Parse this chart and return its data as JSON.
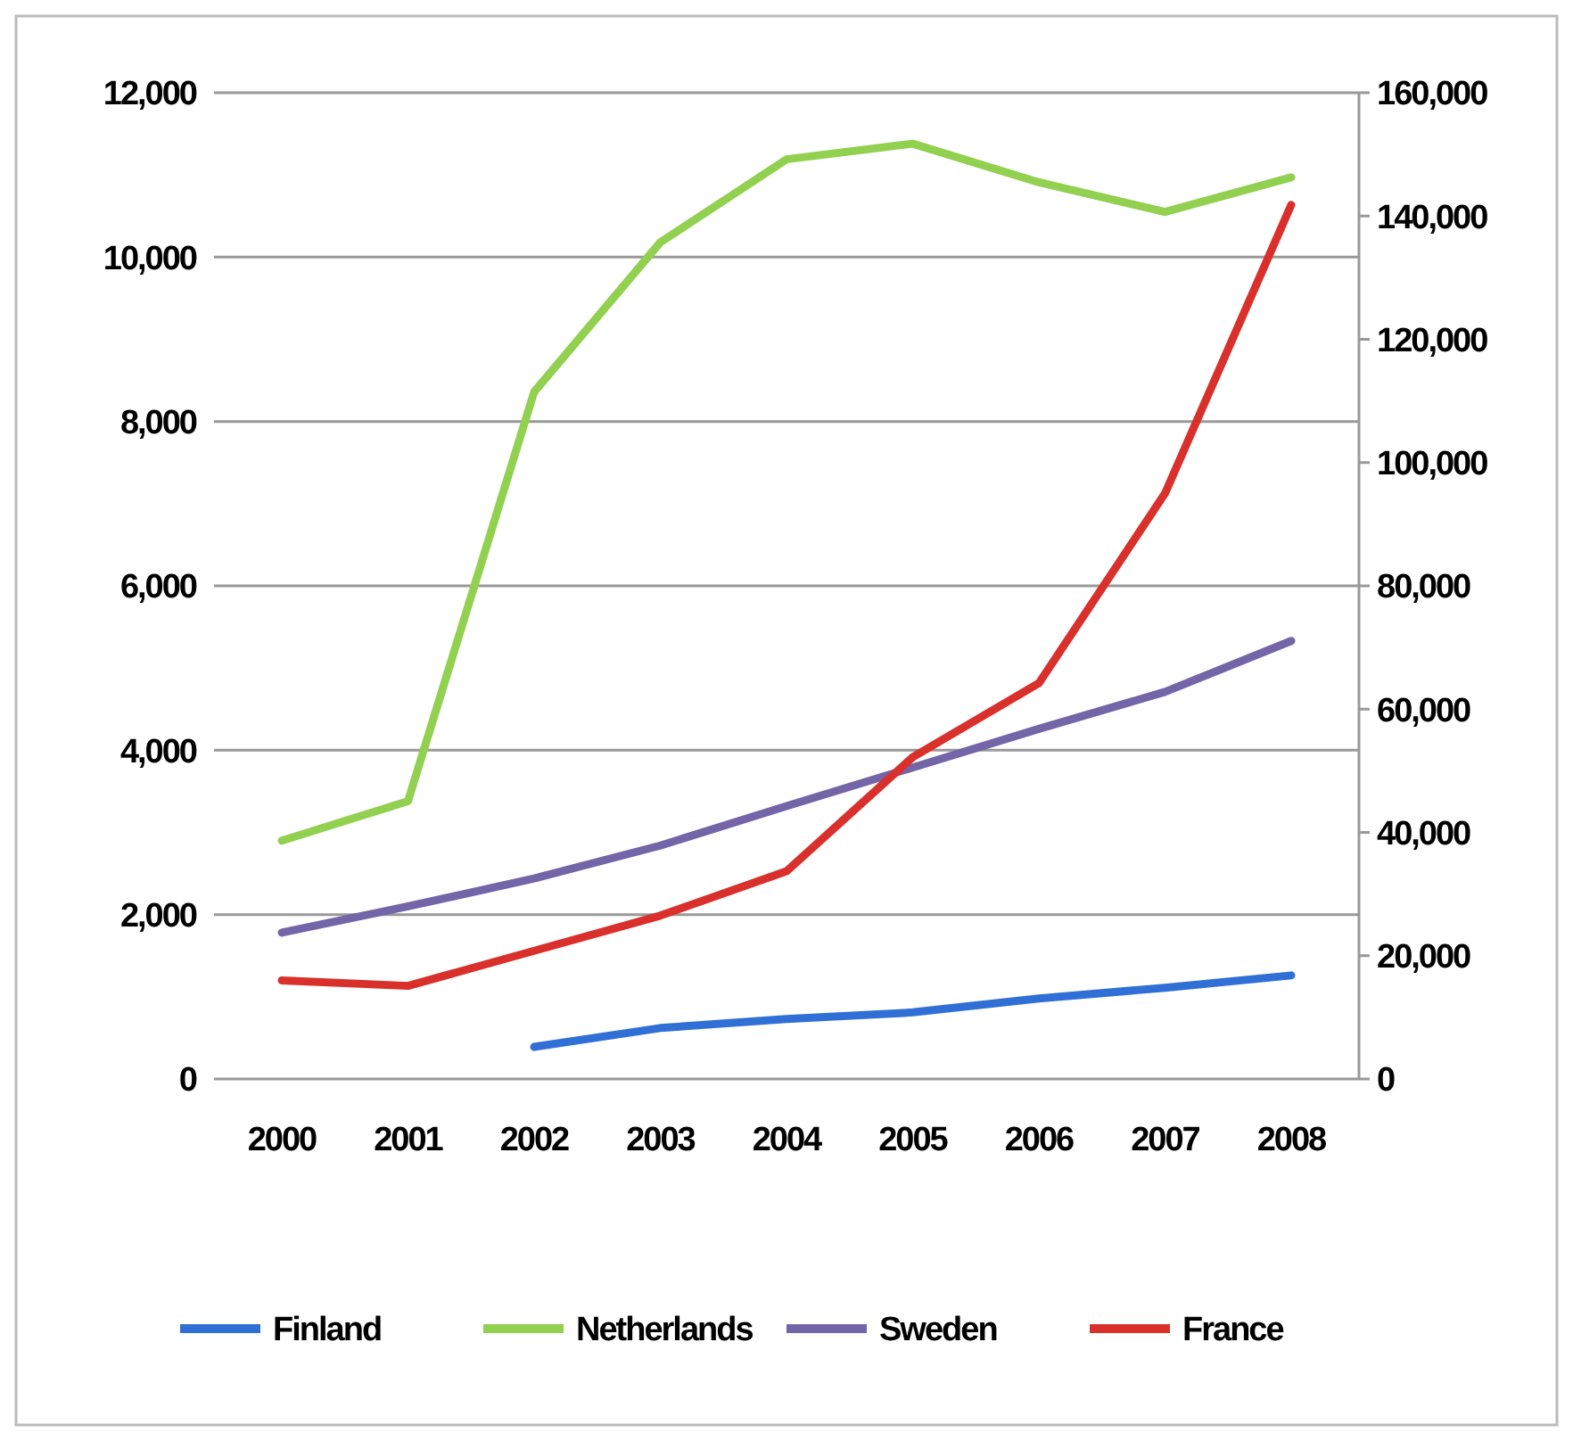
{
  "chart_data": {
    "type": "line",
    "categories": [
      "2000",
      "2001",
      "2002",
      "2003",
      "2004",
      "2005",
      "2006",
      "2007",
      "2008"
    ],
    "series": [
      {
        "name": "Finland",
        "color": "#2f6fd6",
        "values": [
          null,
          null,
          390,
          620,
          730,
          810,
          980,
          1110,
          1260
        ]
      },
      {
        "name": "Netherlands",
        "color": "#92d050",
        "values": [
          2900,
          3380,
          8360,
          10180,
          11190,
          11380,
          10910,
          10550,
          10970
        ]
      },
      {
        "name": "Sweden",
        "color": "#7464a8",
        "values": [
          1780,
          2100,
          2440,
          2840,
          3320,
          3790,
          4260,
          4710,
          5330
        ]
      },
      {
        "name": "France",
        "color": "#d9302c",
        "axis": "y2",
        "values": [
          16000,
          15100,
          20800,
          26500,
          33700,
          52200,
          64200,
          95000,
          141800
        ]
      }
    ],
    "ylim": [
      0,
      12000
    ],
    "yticks": [
      {
        "value": 0,
        "label": "0"
      },
      {
        "value": 2000,
        "label": "2,000"
      },
      {
        "value": 4000,
        "label": "4,000"
      },
      {
        "value": 6000,
        "label": "6,000"
      },
      {
        "value": 8000,
        "label": "8,000"
      },
      {
        "value": 10000,
        "label": "10,000"
      },
      {
        "value": 12000,
        "label": "12,000"
      }
    ],
    "y2lim": [
      0,
      160000
    ],
    "y2ticks": [
      {
        "value": 0,
        "label": "0"
      },
      {
        "value": 20000,
        "label": "20,000"
      },
      {
        "value": 40000,
        "label": "40,000"
      },
      {
        "value": 60000,
        "label": "60,000"
      },
      {
        "value": 80000,
        "label": "80,000"
      },
      {
        "value": 100000,
        "label": "100,000"
      },
      {
        "value": 120000,
        "label": "120,000"
      },
      {
        "value": 140000,
        "label": "140,000"
      },
      {
        "value": 160000,
        "label": "160,000"
      }
    ],
    "grid": "y",
    "legend": "bottom",
    "marker": "none",
    "line_style": "solid"
  }
}
